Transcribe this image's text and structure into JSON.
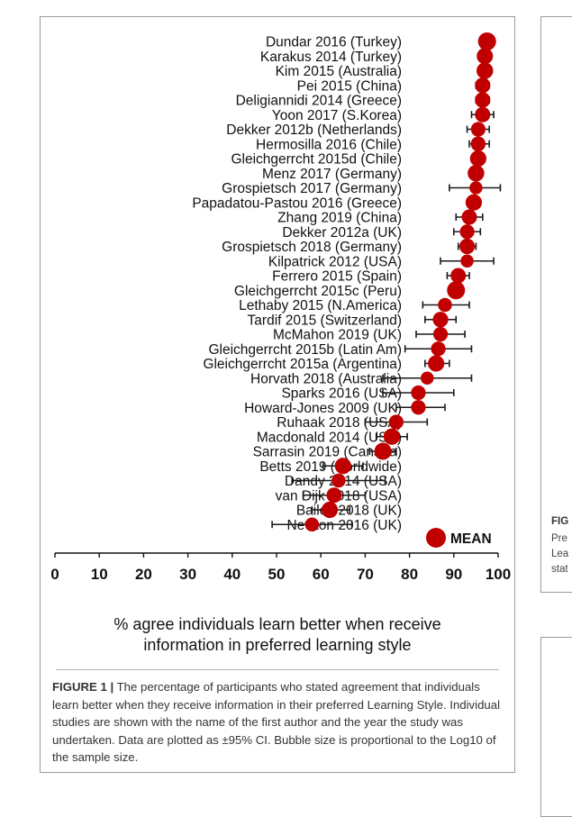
{
  "chart_data": {
    "type": "scatter",
    "subtype": "forest-plot",
    "xlabel_line1": "% agree individuals learn better when receive",
    "xlabel_line2": "information in preferred learning style",
    "xlim": [
      0,
      100
    ],
    "xticks": [
      0,
      10,
      20,
      30,
      40,
      50,
      60,
      70,
      80,
      90,
      100
    ],
    "grid": false,
    "legend": {
      "label": "MEAN",
      "placement": "bottom-right"
    },
    "colors": {
      "marker": "#c00000",
      "errorbar": "#1a1a1a"
    },
    "studies": [
      {
        "name": "Dundar 2016 (Turkey)",
        "value": 97.5,
        "ci": [
          97.0,
          98.0
        ],
        "rel_size": 1.0
      },
      {
        "name": "Karakus 2014 (Turkey)",
        "value": 97,
        "ci": [
          95.5,
          98.5
        ],
        "rel_size": 0.8
      },
      {
        "name": "Kim 2015 (Australia)",
        "value": 97,
        "ci": [
          96.5,
          97.5
        ],
        "rel_size": 0.85
      },
      {
        "name": "Pei 2015 (China)",
        "value": 96.5,
        "ci": [
          95.0,
          98.0
        ],
        "rel_size": 0.72
      },
      {
        "name": "Deligiannidi 2014 (Greece)",
        "value": 96.5,
        "ci": [
          95.0,
          98.0
        ],
        "rel_size": 0.72
      },
      {
        "name": "Yoon 2017 (S.Korea)",
        "value": 96.5,
        "ci": [
          94.0,
          99.0
        ],
        "rel_size": 0.7
      },
      {
        "name": "Dekker 2012b (Netherlands)",
        "value": 95.5,
        "ci": [
          93.0,
          98.0
        ],
        "rel_size": 0.62
      },
      {
        "name": "Hermosilla 2016 (Chile)",
        "value": 95.5,
        "ci": [
          93.5,
          98.0
        ],
        "rel_size": 0.65
      },
      {
        "name": "Gleichgerrcht 2015d (Chile)",
        "value": 95.5,
        "ci": [
          94.5,
          96.5
        ],
        "rel_size": 0.82
      },
      {
        "name": "Menz 2017 (Germany)",
        "value": 95,
        "ci": [
          94.5,
          95.5
        ],
        "rel_size": 0.85
      },
      {
        "name": "Grospietsch 2017 (Germany)",
        "value": 95,
        "ci": [
          89.0,
          100.5
        ],
        "rel_size": 0.45
      },
      {
        "name": "Papadatou-Pastou 2016 (Greece)",
        "value": 94.5,
        "ci": [
          93.0,
          96.0
        ],
        "rel_size": 0.82
      },
      {
        "name": "Zhang 2019 (China)",
        "value": 93.5,
        "ci": [
          90.5,
          96.5
        ],
        "rel_size": 0.7
      },
      {
        "name": "Dekker 2012a (UK)",
        "value": 93,
        "ci": [
          90.0,
          96.0
        ],
        "rel_size": 0.62
      },
      {
        "name": "Grospietsch 2018 (Germany)",
        "value": 93,
        "ci": [
          91.0,
          95.0
        ],
        "rel_size": 0.72
      },
      {
        "name": "Kilpatrick 2012 (USA)",
        "value": 93,
        "ci": [
          87.0,
          99.0
        ],
        "rel_size": 0.45
      },
      {
        "name": "Ferrero 2015 (Spain)",
        "value": 91,
        "ci": [
          88.5,
          93.5
        ],
        "rel_size": 0.7
      },
      {
        "name": "Gleichgerrcht 2015c (Peru)",
        "value": 90.5,
        "ci": [
          89.5,
          91.5
        ],
        "rel_size": 1.0
      },
      {
        "name": "Lethaby 2015 (N.America)",
        "value": 88,
        "ci": [
          83.0,
          93.5
        ],
        "rel_size": 0.55
      },
      {
        "name": "Tardif 2015 (Switzerland)",
        "value": 87,
        "ci": [
          83.5,
          90.5
        ],
        "rel_size": 0.72
      },
      {
        "name": "McMahon 2019 (UK)",
        "value": 87,
        "ci": [
          81.5,
          92.5
        ],
        "rel_size": 0.62
      },
      {
        "name": "Gleichgerrcht 2015b (Latin Am)",
        "value": 86.5,
        "ci": [
          79.0,
          94.0
        ],
        "rel_size": 0.62
      },
      {
        "name": "Gleichgerrcht 2015a (Argentina)",
        "value": 86,
        "ci": [
          83.5,
          89.0
        ],
        "rel_size": 0.82
      },
      {
        "name": "Horvath 2018 (Australia)",
        "value": 84,
        "ci": [
          74.0,
          94.0
        ],
        "rel_size": 0.45
      },
      {
        "name": "Sparks 2016 (USA)",
        "value": 82,
        "ci": [
          74.0,
          90.0
        ],
        "rel_size": 0.62
      },
      {
        "name": "Howard-Jones 2009 (UK)",
        "value": 82,
        "ci": [
          77.0,
          88.0
        ],
        "rel_size": 0.62
      },
      {
        "name": "Ruhaak 2018 (USA)",
        "value": 77,
        "ci": [
          70.0,
          84.0
        ],
        "rel_size": 0.62
      },
      {
        "name": "Macdonald 2014 (USA)",
        "value": 76,
        "ci": [
          72.5,
          79.5
        ],
        "rel_size": 0.82
      },
      {
        "name": "Sarrasin 2019 (Canada)",
        "value": 74,
        "ci": [
          71.0,
          77.0
        ],
        "rel_size": 0.9
      },
      {
        "name": "Betts 2019 (worldwide)",
        "value": 65,
        "ci": [
          60.5,
          69.5
        ],
        "rel_size": 0.82
      },
      {
        "name": "Dandy 2014 (USA)",
        "value": 64,
        "ci": [
          53.5,
          74.5
        ],
        "rel_size": 0.55
      },
      {
        "name": "van Dijk 2018 (USA)",
        "value": 63,
        "ci": [
          56.0,
          70.0
        ],
        "rel_size": 0.7
      },
      {
        "name": "Bailey 2018 (UK)",
        "value": 62,
        "ci": [
          58.0,
          66.5
        ],
        "rel_size": 0.82
      },
      {
        "name": "Newton 2016 (UK)",
        "value": 58,
        "ci": [
          49.0,
          67.0
        ],
        "rel_size": 0.55
      }
    ]
  },
  "caption": {
    "lead": "FIGURE 1 |",
    "text": " The percentage of participants who stated agreement that individuals learn better when they receive information in their preferred Learning Style. Individual studies are shown with the name of the first author and the year the study was undertaken. Data are plotted as ±95% CI. Bubble size is proportional to the Log10 of the sample size."
  },
  "side_panel": {
    "fig_label": "FIG",
    "line1": "Pre",
    "line2": "Lea",
    "line3": "stat"
  }
}
